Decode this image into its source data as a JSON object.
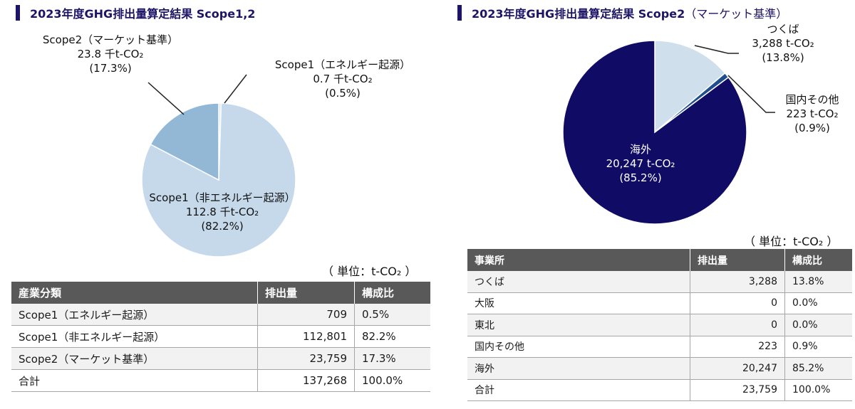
{
  "chart_data": [
    {
      "type": "pie",
      "title": "2023年度GHG排出量算定結果 Scope1,2",
      "slices": [
        {
          "name": "Scope1（エネルギー起源）",
          "value": 0.7,
          "unit": "千t-CO₂",
          "pct": "(0.5%)",
          "color": "#dbe7f3"
        },
        {
          "name": "Scope1（非エネルギー起源）",
          "value": 112.8,
          "unit": "千t-CO₂",
          "pct": "(82.2%)",
          "color": "#c5d9eb"
        },
        {
          "name": "Scope2（マーケット基準）",
          "value": 23.8,
          "unit": "千t-CO₂",
          "pct": "(17.3%)",
          "color": "#93b8d6"
        }
      ],
      "table": {
        "unit_note": "（ 単位：t-CO₂ ）",
        "headers": [
          "産業分類",
          "排出量",
          "構成比"
        ],
        "rows": [
          [
            "Scope1（エネルギー起源）",
            "709",
            "0.5%"
          ],
          [
            "Scope1（非エネルギー起源）",
            "112,801",
            "82.2%"
          ],
          [
            "Scope2（マーケット基準）",
            "23,759",
            "17.3%"
          ],
          [
            "合計",
            "137,268",
            "100.0%"
          ]
        ]
      }
    },
    {
      "type": "pie",
      "title": "2023年度GHG排出量算定結果 Scope2",
      "subtitle": "（マーケット基準）",
      "slices": [
        {
          "name": "つくば",
          "value": 3288,
          "value_label": "3,288",
          "unit": "t-CO₂",
          "pct": "(13.8%)",
          "color": "#cfdfec"
        },
        {
          "name": "国内その他",
          "value": 223,
          "value_label": "223",
          "unit": "t-CO₂",
          "pct": "(0.9%)",
          "color": "#1f4e8c"
        },
        {
          "name": "海外",
          "value": 20247,
          "value_label": "20,247",
          "unit": "t-CO₂",
          "pct": "(85.2%)",
          "color": "#100c66"
        }
      ],
      "table": {
        "unit_note": "（ 単位：t-CO₂ ）",
        "headers": [
          "事業所",
          "排出量",
          "構成比"
        ],
        "rows": [
          [
            "つくば",
            "3,288",
            "13.8%"
          ],
          [
            "大阪",
            "0",
            "0.0%"
          ],
          [
            "東北",
            "0",
            "0.0%"
          ],
          [
            "国内その他",
            "223",
            "0.9%"
          ],
          [
            "海外",
            "20,247",
            "85.2%"
          ],
          [
            "合計",
            "23,759",
            "100.0%"
          ]
        ]
      }
    }
  ]
}
